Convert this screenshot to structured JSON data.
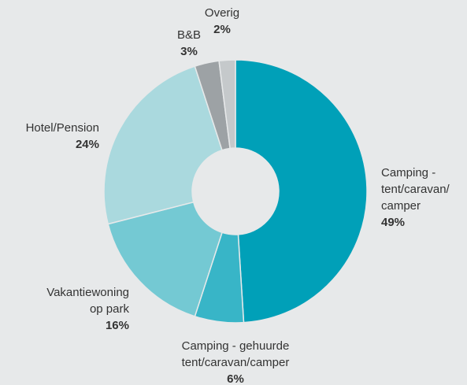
{
  "chart_data": {
    "type": "donut",
    "categories": [
      [
        "Camping -",
        "tent/caravan/",
        "camper"
      ],
      [
        "Camping - gehuurde",
        "tent/caravan/camper"
      ],
      [
        "Vakantiewoning",
        "op park"
      ],
      [
        "Hotel/Pension"
      ],
      [
        "B&B"
      ],
      [
        "Overig"
      ]
    ],
    "values": [
      49,
      6,
      16,
      24,
      3,
      2
    ],
    "value_labels": [
      "49%",
      "6%",
      "16%",
      "24%",
      "3%",
      "2%"
    ],
    "colors": [
      "#00a0b8",
      "#38b5c7",
      "#74c9d3",
      "#aad9de",
      "#9da2a5",
      "#c5c9cb"
    ]
  }
}
